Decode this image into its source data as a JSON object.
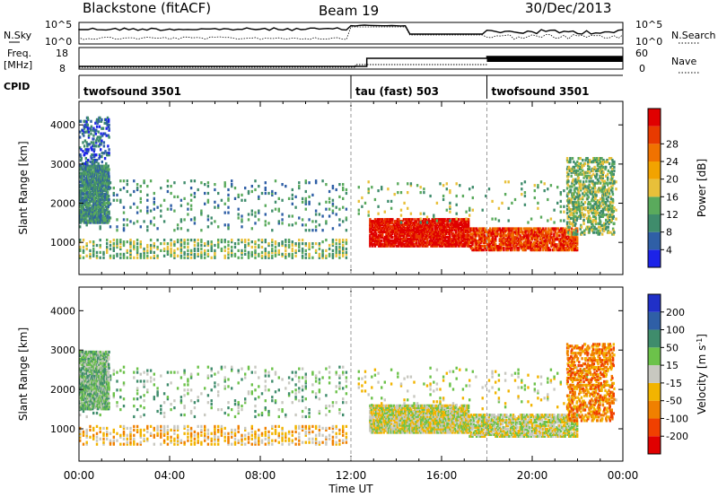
{
  "header": {
    "radar": "Blackstone (fitACF)",
    "beam": "Beam 19",
    "date": "30/Dec/2013"
  },
  "strips": {
    "nsky_label": "N.Sky",
    "nsky_ticks": [
      "10^5",
      "10^0"
    ],
    "nsearch_label": "N.Search",
    "freq_label": "Freq.",
    "freq_unit": "[MHz]",
    "freq_ticks": [
      "18",
      "8"
    ],
    "nave_label": "Nave",
    "nave_ticks": [
      "60",
      "0"
    ],
    "cpid_label": "CPID"
  },
  "cpid": [
    {
      "start_h": 0,
      "label": "twofsound 3501"
    },
    {
      "start_h": 12,
      "label": "tau (fast) 503"
    },
    {
      "start_h": 18,
      "label": "twofsound 3501"
    }
  ],
  "chart_data": [
    {
      "type": "heatmap",
      "title": "",
      "xlabel": "Time UT",
      "ylabel": "Slant Range [km]",
      "xlim_hours": [
        0,
        24
      ],
      "x_ticks": [
        "00:00",
        "04:00",
        "08:00",
        "12:00",
        "16:00",
        "20:00",
        "00:00"
      ],
      "ylim": [
        180,
        4600
      ],
      "y_ticks": [
        1000,
        2000,
        3000,
        4000
      ],
      "colorbar": {
        "label": "Power [dB]",
        "ticks": [
          4,
          8,
          12,
          16,
          20,
          24,
          28
        ],
        "colors": [
          "#1c23e8",
          "#2f5fa6",
          "#3f8c6c",
          "#5aaa5c",
          "#e8c03a",
          "#f2a300",
          "#f07200",
          "#e83a00",
          "#e00000"
        ]
      },
      "bands": [
        {
          "x_start": 0.0,
          "x_end": 11.9,
          "range_start": 600,
          "range_end": 1100,
          "density": 0.55,
          "level": 3
        },
        {
          "x_start": 0.0,
          "x_end": 11.9,
          "range_start": 1300,
          "range_end": 2600,
          "density": 0.15,
          "level": 2
        },
        {
          "x_start": 0.0,
          "x_end": 1.3,
          "range_start": 1500,
          "range_end": 3000,
          "density": 0.35,
          "level": 2
        },
        {
          "x_start": 0.0,
          "x_end": 1.3,
          "range_start": 3000,
          "range_end": 4200,
          "density": 0.08,
          "level": 1
        },
        {
          "x_start": 12.8,
          "x_end": 17.2,
          "range_start": 900,
          "range_end": 1600,
          "density": 0.8,
          "level": 8
        },
        {
          "x_start": 17.2,
          "x_end": 22.0,
          "range_start": 800,
          "range_end": 1400,
          "density": 0.75,
          "level": 7
        },
        {
          "x_start": 12.3,
          "x_end": 23.8,
          "range_start": 1500,
          "range_end": 2600,
          "density": 0.1,
          "level": 3
        },
        {
          "x_start": 21.5,
          "x_end": 23.6,
          "range_start": 1200,
          "range_end": 3200,
          "density": 0.2,
          "level": 3
        }
      ]
    },
    {
      "type": "heatmap",
      "title": "",
      "xlabel": "Time UT",
      "ylabel": "Slant Range [km]",
      "xlim_hours": [
        0,
        24
      ],
      "x_ticks": [
        "00:00",
        "04:00",
        "08:00",
        "12:00",
        "16:00",
        "20:00",
        "00:00"
      ],
      "ylim": [
        180,
        4600
      ],
      "y_ticks": [
        1000,
        2000,
        3000,
        4000
      ],
      "colorbar": {
        "label": "Velocity [m s^-1]",
        "ticks": [
          200,
          100,
          50,
          15,
          -15,
          -50,
          -100,
          -200
        ],
        "colors": [
          "#2030c8",
          "#2f5fa6",
          "#3f8c6c",
          "#6cc24a",
          "#c8c8c0",
          "#f2b400",
          "#f08000",
          "#f04000",
          "#e00000"
        ]
      },
      "bands": [
        {
          "x_start": 0.0,
          "x_end": 11.9,
          "range_start": 600,
          "range_end": 1100,
          "density": 0.5,
          "level": 5
        },
        {
          "x_start": 0.0,
          "x_end": 11.9,
          "range_start": 1300,
          "range_end": 2600,
          "density": 0.15,
          "level": 3
        },
        {
          "x_start": 0.0,
          "x_end": 1.3,
          "range_start": 1500,
          "range_end": 3000,
          "density": 0.35,
          "level": 3
        },
        {
          "x_start": 12.8,
          "x_end": 17.2,
          "range_start": 900,
          "range_end": 1600,
          "density": 0.85,
          "level": 4
        },
        {
          "x_start": 17.2,
          "x_end": 22.0,
          "range_start": 800,
          "range_end": 1400,
          "density": 0.7,
          "level": 4
        },
        {
          "x_start": 12.3,
          "x_end": 23.8,
          "range_start": 1500,
          "range_end": 2600,
          "density": 0.1,
          "level": 4
        },
        {
          "x_start": 21.5,
          "x_end": 23.6,
          "range_start": 1200,
          "range_end": 3200,
          "density": 0.2,
          "level": 6
        }
      ]
    }
  ]
}
